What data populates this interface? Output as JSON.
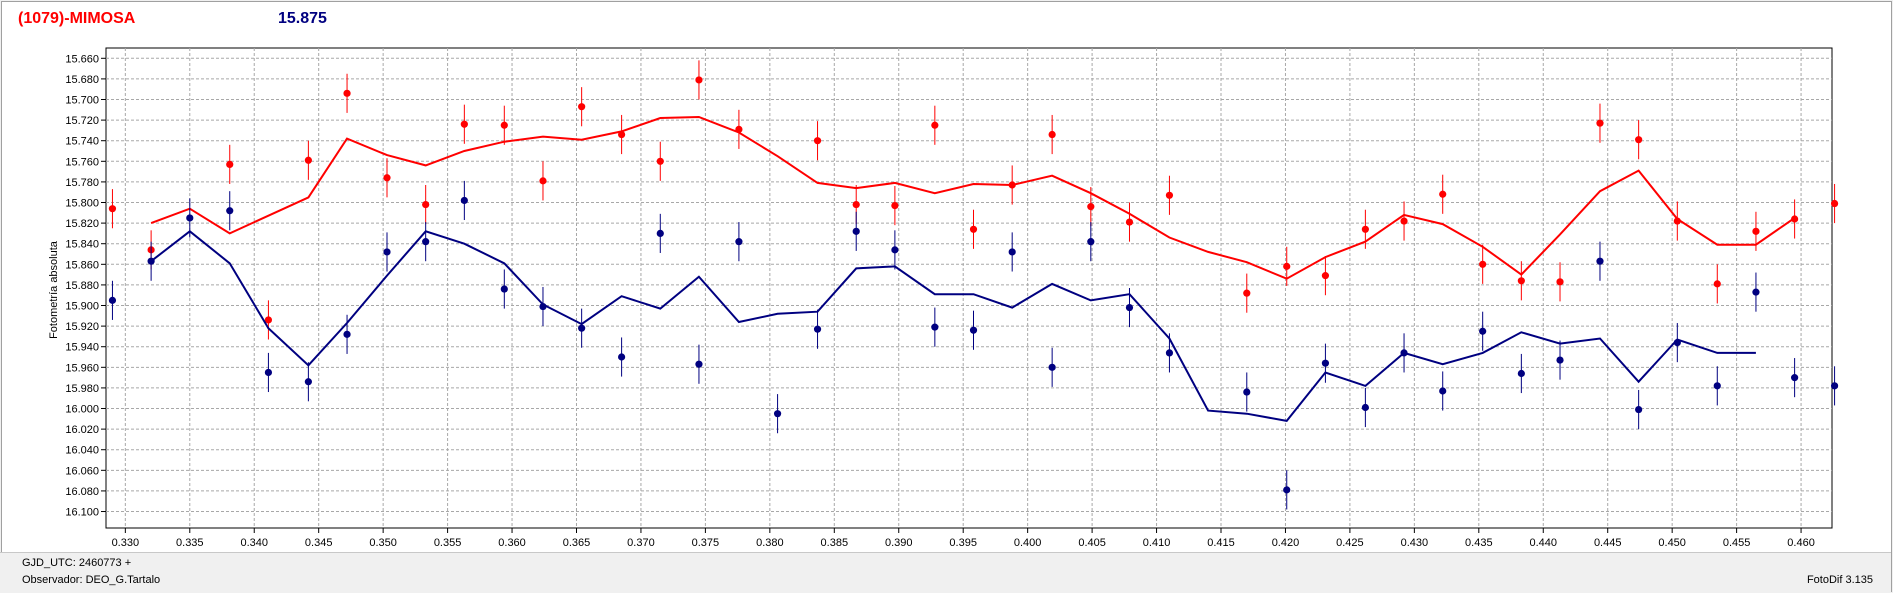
{
  "header": {
    "object_title": "(1079)-MIMOSA",
    "magnitude": "15.875"
  },
  "footer": {
    "gjd_label": "GJD_UTC: 2460773 +",
    "observer_label": "Observador: DEO_G.Tartalo",
    "version_label": "FotoDif 3.135"
  },
  "colors": {
    "red_series": "#ff0000",
    "blue_series": "#000080",
    "grid": "#a8a8a8"
  },
  "chart_data": {
    "type": "scatter",
    "ylabel": "Fotometría absoluta",
    "xlabel": "",
    "xlim": [
      0.3285,
      0.4624
    ],
    "ylim": [
      16.116,
      15.65
    ],
    "y_inverted": true,
    "grid": true,
    "x_ticks": [
      "0.330",
      "0.335",
      "0.340",
      "0.345",
      "0.350",
      "0.355",
      "0.360",
      "0.365",
      "0.370",
      "0.375",
      "0.380",
      "0.385",
      "0.390",
      "0.395",
      "0.400",
      "0.405",
      "0.410",
      "0.415",
      "0.420",
      "0.425",
      "0.430",
      "0.435",
      "0.440",
      "0.445",
      "0.450",
      "0.455",
      "0.460"
    ],
    "y_ticks": [
      "15.660",
      "15.680",
      "15.700",
      "15.720",
      "15.740",
      "15.760",
      "15.780",
      "15.800",
      "15.820",
      "15.840",
      "15.860",
      "15.880",
      "15.900",
      "15.920",
      "15.940",
      "15.960",
      "15.980",
      "16.000",
      "16.020",
      "16.040",
      "16.060",
      "16.080",
      "16.100"
    ],
    "error_bar": 0.019,
    "series": [
      {
        "color": "#ff0000",
        "points": [
          [
            0.329,
            15.806
          ],
          [
            0.332,
            15.846
          ],
          [
            0.3381,
            15.763
          ],
          [
            0.3411,
            15.914
          ],
          [
            0.3442,
            15.759
          ],
          [
            0.3472,
            15.694
          ],
          [
            0.3503,
            15.776
          ],
          [
            0.3533,
            15.802
          ],
          [
            0.3563,
            15.724
          ],
          [
            0.3594,
            15.725
          ],
          [
            0.3624,
            15.779
          ],
          [
            0.3654,
            15.707
          ],
          [
            0.3685,
            15.734
          ],
          [
            0.3715,
            15.76
          ],
          [
            0.3745,
            15.681
          ],
          [
            0.3776,
            15.729
          ],
          [
            0.3837,
            15.74
          ],
          [
            0.3867,
            15.802
          ],
          [
            0.3897,
            15.803
          ],
          [
            0.3928,
            15.725
          ],
          [
            0.3958,
            15.826
          ],
          [
            0.3988,
            15.783
          ],
          [
            0.4019,
            15.734
          ],
          [
            0.4049,
            15.804
          ],
          [
            0.4079,
            15.819
          ],
          [
            0.411,
            15.793
          ],
          [
            0.417,
            15.888
          ],
          [
            0.4201,
            15.862
          ],
          [
            0.4231,
            15.871
          ],
          [
            0.4262,
            15.826
          ],
          [
            0.4292,
            15.818
          ],
          [
            0.4322,
            15.792
          ],
          [
            0.4353,
            15.86
          ],
          [
            0.4383,
            15.876
          ],
          [
            0.4413,
            15.877
          ],
          [
            0.4444,
            15.723
          ],
          [
            0.4474,
            15.739
          ],
          [
            0.4504,
            15.818
          ],
          [
            0.4535,
            15.879
          ],
          [
            0.4565,
            15.828
          ],
          [
            0.4595,
            15.816
          ],
          [
            0.4626,
            15.801
          ]
        ],
        "line": [
          [
            0.332,
            15.82
          ],
          [
            0.335,
            15.806
          ],
          [
            0.3381,
            15.83
          ],
          [
            0.3442,
            15.795
          ],
          [
            0.3472,
            15.738
          ],
          [
            0.3503,
            15.754
          ],
          [
            0.3533,
            15.764
          ],
          [
            0.3563,
            15.75
          ],
          [
            0.3594,
            15.741
          ],
          [
            0.3624,
            15.736
          ],
          [
            0.3654,
            15.739
          ],
          [
            0.3685,
            15.731
          ],
          [
            0.3715,
            15.718
          ],
          [
            0.3745,
            15.717
          ],
          [
            0.3776,
            15.732
          ],
          [
            0.3806,
            15.755
          ],
          [
            0.3837,
            15.781
          ],
          [
            0.3867,
            15.786
          ],
          [
            0.3897,
            15.781
          ],
          [
            0.3928,
            15.791
          ],
          [
            0.3958,
            15.782
          ],
          [
            0.3988,
            15.783
          ],
          [
            0.4019,
            15.774
          ],
          [
            0.4049,
            15.791
          ],
          [
            0.4079,
            15.811
          ],
          [
            0.411,
            15.834
          ],
          [
            0.414,
            15.848
          ],
          [
            0.417,
            15.858
          ],
          [
            0.4201,
            15.874
          ],
          [
            0.4231,
            15.853
          ],
          [
            0.4262,
            15.838
          ],
          [
            0.4292,
            15.812
          ],
          [
            0.4322,
            15.821
          ],
          [
            0.4353,
            15.843
          ],
          [
            0.4383,
            15.87
          ],
          [
            0.4413,
            15.831
          ],
          [
            0.4444,
            15.789
          ],
          [
            0.4474,
            15.769
          ],
          [
            0.4504,
            15.816
          ],
          [
            0.4535,
            15.841
          ],
          [
            0.4565,
            15.841
          ],
          [
            0.4595,
            15.815
          ]
        ]
      },
      {
        "color": "#000080",
        "points": [
          [
            0.329,
            15.895
          ],
          [
            0.332,
            15.857
          ],
          [
            0.335,
            15.815
          ],
          [
            0.3381,
            15.808
          ],
          [
            0.3411,
            15.965
          ],
          [
            0.3442,
            15.974
          ],
          [
            0.3472,
            15.928
          ],
          [
            0.3503,
            15.848
          ],
          [
            0.3533,
            15.838
          ],
          [
            0.3563,
            15.798
          ],
          [
            0.3594,
            15.884
          ],
          [
            0.3624,
            15.901
          ],
          [
            0.3654,
            15.922
          ],
          [
            0.3685,
            15.95
          ],
          [
            0.3715,
            15.83
          ],
          [
            0.3745,
            15.957
          ],
          [
            0.3776,
            15.838
          ],
          [
            0.3806,
            16.005
          ],
          [
            0.3837,
            15.923
          ],
          [
            0.3867,
            15.828
          ],
          [
            0.3897,
            15.846
          ],
          [
            0.3928,
            15.921
          ],
          [
            0.3958,
            15.924
          ],
          [
            0.3988,
            15.848
          ],
          [
            0.4019,
            15.96
          ],
          [
            0.4049,
            15.838
          ],
          [
            0.4079,
            15.902
          ],
          [
            0.411,
            15.946
          ],
          [
            0.417,
            15.984
          ],
          [
            0.4201,
            16.079
          ],
          [
            0.4231,
            15.956
          ],
          [
            0.4262,
            15.999
          ],
          [
            0.4292,
            15.946
          ],
          [
            0.4322,
            15.983
          ],
          [
            0.4353,
            15.925
          ],
          [
            0.4383,
            15.966
          ],
          [
            0.4413,
            15.953
          ],
          [
            0.4444,
            15.857
          ],
          [
            0.4474,
            16.001
          ],
          [
            0.4504,
            15.936
          ],
          [
            0.4535,
            15.978
          ],
          [
            0.4565,
            15.887
          ],
          [
            0.4595,
            15.97
          ],
          [
            0.4626,
            15.978
          ]
        ],
        "line": [
          [
            0.332,
            15.857
          ],
          [
            0.335,
            15.828
          ],
          [
            0.3381,
            15.859
          ],
          [
            0.3411,
            15.922
          ],
          [
            0.3442,
            15.958
          ],
          [
            0.3472,
            15.917
          ],
          [
            0.3503,
            15.871
          ],
          [
            0.3533,
            15.828
          ],
          [
            0.3563,
            15.84
          ],
          [
            0.3594,
            15.859
          ],
          [
            0.3624,
            15.899
          ],
          [
            0.3654,
            15.918
          ],
          [
            0.3685,
            15.891
          ],
          [
            0.3715,
            15.903
          ],
          [
            0.3745,
            15.872
          ],
          [
            0.3776,
            15.916
          ],
          [
            0.3806,
            15.908
          ],
          [
            0.3837,
            15.906
          ],
          [
            0.3867,
            15.864
          ],
          [
            0.3897,
            15.862
          ],
          [
            0.3928,
            15.889
          ],
          [
            0.3958,
            15.889
          ],
          [
            0.3988,
            15.902
          ],
          [
            0.4019,
            15.879
          ],
          [
            0.4049,
            15.895
          ],
          [
            0.4079,
            15.889
          ],
          [
            0.411,
            15.932
          ],
          [
            0.414,
            16.002
          ],
          [
            0.417,
            16.005
          ],
          [
            0.4201,
            16.012
          ],
          [
            0.4231,
            15.965
          ],
          [
            0.4262,
            15.978
          ],
          [
            0.4292,
            15.946
          ],
          [
            0.4322,
            15.957
          ],
          [
            0.4353,
            15.946
          ],
          [
            0.4383,
            15.926
          ],
          [
            0.4413,
            15.937
          ],
          [
            0.4444,
            15.932
          ],
          [
            0.4474,
            15.974
          ],
          [
            0.4504,
            15.933
          ],
          [
            0.4535,
            15.946
          ],
          [
            0.4565,
            15.946
          ]
        ]
      }
    ]
  }
}
